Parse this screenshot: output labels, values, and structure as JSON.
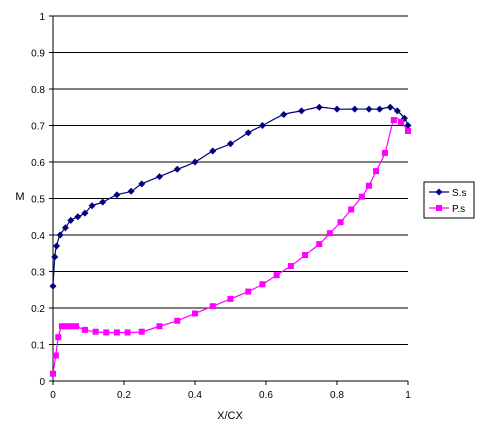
{
  "chart_data": {
    "type": "line",
    "xlabel": "X/CX",
    "ylabel": "M",
    "xlim": [
      0,
      1
    ],
    "ylim": [
      0,
      1
    ],
    "xticks": [
      "0",
      "0.2",
      "0.4",
      "0.6",
      "0.8",
      "1"
    ],
    "yticks": [
      "0",
      "0.1",
      "0.2",
      "0.3",
      "0.4",
      "0.5",
      "0.6",
      "0.7",
      "0.8",
      "0.9",
      "1"
    ],
    "grid": "horizontal",
    "legend_position": "right",
    "series": [
      {
        "name": "S.s",
        "color": "#000080",
        "marker": "diamond",
        "x": [
          0.0,
          0.005,
          0.01,
          0.02,
          0.035,
          0.05,
          0.07,
          0.09,
          0.11,
          0.14,
          0.18,
          0.22,
          0.25,
          0.3,
          0.35,
          0.4,
          0.45,
          0.5,
          0.55,
          0.59,
          0.65,
          0.7,
          0.75,
          0.8,
          0.85,
          0.89,
          0.92,
          0.95,
          0.97,
          0.99,
          1.0
        ],
        "y": [
          0.26,
          0.34,
          0.37,
          0.4,
          0.42,
          0.44,
          0.45,
          0.46,
          0.48,
          0.49,
          0.51,
          0.52,
          0.54,
          0.56,
          0.58,
          0.6,
          0.63,
          0.65,
          0.68,
          0.7,
          0.73,
          0.74,
          0.75,
          0.745,
          0.745,
          0.745,
          0.745,
          0.75,
          0.74,
          0.72,
          0.7
        ]
      },
      {
        "name": "P.s",
        "color": "#ff00ff",
        "marker": "square",
        "x": [
          0.0,
          0.008,
          0.015,
          0.025,
          0.035,
          0.05,
          0.065,
          0.09,
          0.12,
          0.15,
          0.18,
          0.21,
          0.25,
          0.3,
          0.35,
          0.4,
          0.45,
          0.5,
          0.55,
          0.59,
          0.63,
          0.67,
          0.71,
          0.75,
          0.78,
          0.81,
          0.84,
          0.87,
          0.89,
          0.91,
          0.935,
          0.96,
          0.98,
          1.0
        ],
        "y": [
          0.02,
          0.07,
          0.12,
          0.15,
          0.15,
          0.15,
          0.15,
          0.14,
          0.135,
          0.133,
          0.133,
          0.133,
          0.135,
          0.15,
          0.165,
          0.185,
          0.205,
          0.225,
          0.245,
          0.265,
          0.29,
          0.315,
          0.345,
          0.375,
          0.405,
          0.435,
          0.47,
          0.505,
          0.535,
          0.575,
          0.625,
          0.715,
          0.71,
          0.685
        ]
      }
    ]
  }
}
